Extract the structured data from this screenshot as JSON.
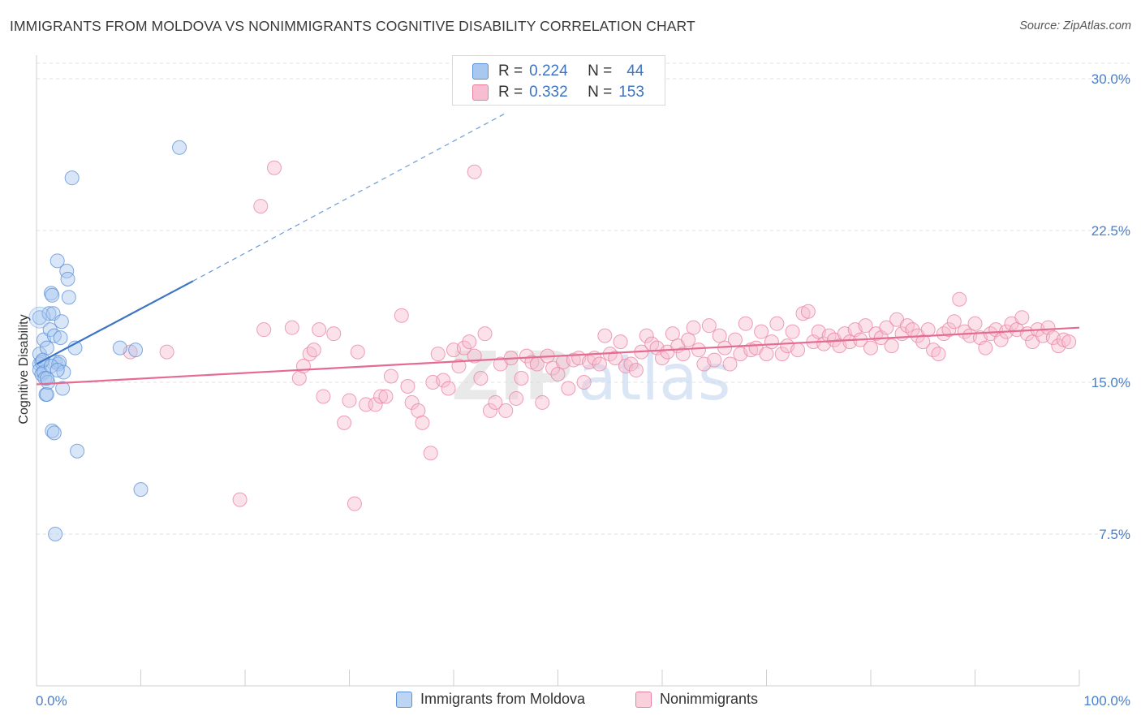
{
  "title": "IMMIGRANTS FROM MOLDOVA VS NONIMMIGRANTS COGNITIVE DISABILITY CORRELATION CHART",
  "source": "Source: ZipAtlas.com",
  "watermark": {
    "zip": "ZIP",
    "atlas": "atlas"
  },
  "legend_top": {
    "rows": [
      {
        "r_label": "R =",
        "r_value": "0.224",
        "n_label": "N =",
        "n_value": "44",
        "color": "#a8c8f0",
        "border": "#5b8fd6"
      },
      {
        "r_label": "R =",
        "r_value": "0.332",
        "n_label": "N =",
        "n_value": "153",
        "color": "#f7bdd0",
        "border": "#e8819f"
      }
    ]
  },
  "legend_bottom": {
    "items": [
      {
        "label": "Immigrants from Moldova",
        "color": "#bcd5f5",
        "border": "#5b8fd6"
      },
      {
        "label": "Nonimmigrants",
        "color": "#fad0dc",
        "border": "#e8819f"
      }
    ]
  },
  "chart_data": {
    "type": "scatter",
    "title": "IMMIGRANTS FROM MOLDOVA VS NONIMMIGRANTS COGNITIVE DISABILITY CORRELATION CHART",
    "xlabel": "",
    "ylabel": "Cognitive Disability",
    "xlim": [
      0,
      100
    ],
    "ylim": [
      0,
      31.5
    ],
    "x_tick_labels": [
      "0.0%",
      "100.0%"
    ],
    "y_ticks": [
      7.5,
      15.0,
      22.5,
      30.0
    ],
    "y_tick_labels": [
      "7.5%",
      "15.0%",
      "22.5%",
      "30.0%"
    ],
    "grid": true,
    "series": [
      {
        "name": "Immigrants from Moldova",
        "color": "#5b8fd6",
        "fill": "#a8c8f0",
        "trend": {
          "x0": 0,
          "y0": 15.9,
          "x1": 15,
          "y1": 20.0,
          "dashed_to_x": 45,
          "dashed_to_y": 28.3
        },
        "points": [
          [
            0.3,
            18.2
          ],
          [
            0.3,
            16.4
          ],
          [
            0.3,
            15.9
          ],
          [
            0.3,
            15.6
          ],
          [
            0.5,
            16.0
          ],
          [
            0.5,
            15.4
          ],
          [
            0.7,
            17.1
          ],
          [
            0.7,
            15.5
          ],
          [
            0.8,
            15.2
          ],
          [
            0.9,
            14.4
          ],
          [
            1.0,
            14.4
          ],
          [
            1.0,
            16.7
          ],
          [
            1.1,
            15.0
          ],
          [
            1.2,
            18.4
          ],
          [
            1.3,
            17.6
          ],
          [
            1.4,
            19.4
          ],
          [
            1.5,
            19.3
          ],
          [
            1.5,
            12.6
          ],
          [
            1.6,
            18.4
          ],
          [
            1.7,
            17.3
          ],
          [
            1.7,
            12.5
          ],
          [
            1.8,
            16.0
          ],
          [
            1.8,
            7.5
          ],
          [
            2.0,
            21.0
          ],
          [
            2.1,
            15.9
          ],
          [
            2.2,
            16.0
          ],
          [
            2.3,
            17.2
          ],
          [
            2.4,
            18.0
          ],
          [
            2.5,
            14.7
          ],
          [
            2.6,
            15.5
          ],
          [
            2.9,
            20.5
          ],
          [
            3.0,
            20.1
          ],
          [
            3.1,
            19.2
          ],
          [
            3.4,
            25.1
          ],
          [
            3.7,
            16.7
          ],
          [
            3.9,
            11.6
          ],
          [
            8.0,
            16.7
          ],
          [
            9.5,
            16.6
          ],
          [
            10.0,
            9.7
          ],
          [
            13.7,
            26.6
          ],
          [
            1.0,
            15.2
          ],
          [
            0.6,
            16.1
          ],
          [
            1.4,
            15.8
          ],
          [
            2.0,
            15.6
          ]
        ]
      },
      {
        "name": "Nonimmigrants",
        "color": "#e8819f",
        "fill": "#f7bdd0",
        "trend": {
          "x0": 0,
          "y0": 14.9,
          "x1": 100,
          "y1": 17.7
        },
        "points": [
          [
            9.0,
            16.5
          ],
          [
            12.5,
            16.5
          ],
          [
            19.5,
            9.2
          ],
          [
            21.5,
            23.7
          ],
          [
            21.8,
            17.6
          ],
          [
            22.8,
            25.6
          ],
          [
            24.5,
            17.7
          ],
          [
            25.2,
            15.2
          ],
          [
            25.6,
            15.8
          ],
          [
            26.2,
            16.4
          ],
          [
            26.6,
            16.6
          ],
          [
            27.1,
            17.6
          ],
          [
            27.5,
            14.3
          ],
          [
            28.5,
            17.4
          ],
          [
            29.5,
            13.0
          ],
          [
            30.0,
            14.1
          ],
          [
            30.5,
            9.0
          ],
          [
            30.8,
            16.5
          ],
          [
            31.6,
            13.9
          ],
          [
            32.5,
            13.9
          ],
          [
            33.0,
            14.3
          ],
          [
            33.5,
            14.3
          ],
          [
            34.0,
            15.3
          ],
          [
            35.0,
            18.3
          ],
          [
            35.6,
            14.8
          ],
          [
            36.0,
            14.0
          ],
          [
            36.6,
            13.6
          ],
          [
            37.0,
            13.0
          ],
          [
            37.8,
            11.5
          ],
          [
            38.0,
            15.0
          ],
          [
            38.5,
            16.4
          ],
          [
            39.0,
            15.1
          ],
          [
            39.5,
            14.7
          ],
          [
            40.0,
            16.6
          ],
          [
            40.5,
            15.8
          ],
          [
            41.0,
            16.7
          ],
          [
            41.5,
            17.0
          ],
          [
            42.0,
            16.3
          ],
          [
            42.6,
            15.2
          ],
          [
            43.0,
            17.4
          ],
          [
            43.5,
            13.6
          ],
          [
            44.0,
            14.0
          ],
          [
            44.5,
            15.9
          ],
          [
            45.0,
            13.6
          ],
          [
            45.5,
            16.2
          ],
          [
            46.0,
            14.2
          ],
          [
            46.5,
            15.2
          ],
          [
            47.0,
            16.3
          ],
          [
            47.5,
            16.0
          ],
          [
            48.0,
            15.9
          ],
          [
            48.5,
            14.0
          ],
          [
            49.0,
            16.3
          ],
          [
            49.5,
            15.7
          ],
          [
            50.0,
            15.4
          ],
          [
            50.5,
            16.0
          ],
          [
            51.0,
            14.7
          ],
          [
            51.5,
            16.1
          ],
          [
            52.0,
            16.2
          ],
          [
            52.5,
            15.0
          ],
          [
            53.0,
            16.0
          ],
          [
            53.5,
            16.2
          ],
          [
            54.0,
            15.9
          ],
          [
            54.5,
            17.3
          ],
          [
            55.0,
            16.4
          ],
          [
            55.5,
            16.2
          ],
          [
            56.0,
            17.0
          ],
          [
            56.5,
            15.8
          ],
          [
            57.0,
            15.9
          ],
          [
            57.5,
            15.6
          ],
          [
            58.0,
            16.5
          ],
          [
            58.5,
            17.3
          ],
          [
            59.0,
            16.9
          ],
          [
            59.5,
            16.7
          ],
          [
            60.0,
            16.2
          ],
          [
            60.5,
            16.5
          ],
          [
            61.0,
            17.4
          ],
          [
            61.5,
            16.8
          ],
          [
            62.0,
            16.4
          ],
          [
            62.5,
            17.1
          ],
          [
            63.0,
            17.7
          ],
          [
            63.5,
            16.6
          ],
          [
            64.0,
            15.9
          ],
          [
            64.5,
            17.8
          ],
          [
            65.0,
            16.1
          ],
          [
            65.5,
            17.3
          ],
          [
            66.0,
            16.7
          ],
          [
            66.5,
            15.9
          ],
          [
            67.0,
            17.1
          ],
          [
            67.5,
            16.4
          ],
          [
            68.0,
            17.9
          ],
          [
            68.5,
            16.6
          ],
          [
            69.0,
            16.7
          ],
          [
            69.5,
            17.5
          ],
          [
            70.0,
            16.4
          ],
          [
            70.5,
            17.0
          ],
          [
            71.0,
            17.9
          ],
          [
            71.5,
            16.4
          ],
          [
            72.0,
            16.8
          ],
          [
            72.5,
            17.5
          ],
          [
            73.0,
            16.6
          ],
          [
            73.5,
            18.4
          ],
          [
            74.0,
            18.5
          ],
          [
            74.5,
            17.0
          ],
          [
            75.0,
            17.5
          ],
          [
            75.5,
            16.9
          ],
          [
            76.0,
            17.3
          ],
          [
            76.5,
            17.1
          ],
          [
            77.0,
            16.8
          ],
          [
            77.5,
            17.4
          ],
          [
            78.0,
            17.0
          ],
          [
            78.5,
            17.6
          ],
          [
            79.0,
            17.1
          ],
          [
            79.5,
            17.8
          ],
          [
            80.0,
            16.7
          ],
          [
            80.5,
            17.4
          ],
          [
            81.0,
            17.2
          ],
          [
            81.5,
            17.7
          ],
          [
            82.0,
            16.8
          ],
          [
            82.5,
            18.1
          ],
          [
            83.0,
            17.4
          ],
          [
            83.5,
            17.8
          ],
          [
            84.0,
            17.6
          ],
          [
            84.5,
            17.3
          ],
          [
            85.0,
            17.0
          ],
          [
            85.5,
            17.6
          ],
          [
            86.0,
            16.6
          ],
          [
            86.5,
            16.4
          ],
          [
            87.0,
            17.4
          ],
          [
            87.5,
            17.6
          ],
          [
            88.0,
            18.0
          ],
          [
            88.5,
            19.1
          ],
          [
            89.0,
            17.5
          ],
          [
            89.5,
            17.3
          ],
          [
            90.0,
            17.9
          ],
          [
            90.5,
            17.2
          ],
          [
            91.0,
            16.7
          ],
          [
            91.5,
            17.4
          ],
          [
            92.0,
            17.6
          ],
          [
            92.5,
            17.1
          ],
          [
            93.0,
            17.5
          ],
          [
            93.5,
            17.9
          ],
          [
            94.0,
            17.6
          ],
          [
            94.5,
            18.2
          ],
          [
            95.0,
            17.4
          ],
          [
            95.5,
            17.0
          ],
          [
            96.0,
            17.6
          ],
          [
            96.5,
            17.3
          ],
          [
            97.0,
            17.7
          ],
          [
            97.5,
            17.2
          ],
          [
            98.0,
            16.8
          ],
          [
            98.5,
            17.1
          ],
          [
            99.0,
            17.0
          ],
          [
            42.0,
            25.4
          ]
        ]
      }
    ]
  }
}
